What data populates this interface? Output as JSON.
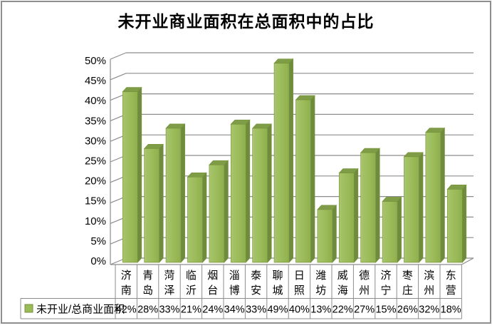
{
  "title": "未开业商业面积在总面积中的占比",
  "legend": {
    "series_label": "未开业/总商业面积"
  },
  "chart_data": {
    "type": "bar",
    "style": "3d-column",
    "title": "未开业商业面积在总面积中的占比",
    "categories": [
      "济南",
      "青岛",
      "菏泽",
      "临沂",
      "烟台",
      "淄博",
      "泰安",
      "聊城",
      "日照",
      "潍坊",
      "威海",
      "德州",
      "济宁",
      "枣庄",
      "滨州",
      "东营"
    ],
    "series": [
      {
        "name": "未开业/总商业面积",
        "values": [
          42,
          28,
          33,
          21,
          24,
          34,
          33,
          49,
          40,
          13,
          22,
          27,
          15,
          26,
          32,
          18
        ]
      }
    ],
    "value_labels": [
      "42%",
      "28%",
      "33%",
      "21%",
      "24%",
      "34%",
      "33%",
      "49%",
      "40%",
      "13%",
      "22%",
      "27%",
      "15%",
      "26%",
      "32%",
      "18%"
    ],
    "xlabel": "",
    "ylabel": "",
    "ylim": [
      0,
      50
    ],
    "y_tick_step": 5,
    "y_ticks": [
      "0%",
      "5%",
      "10%",
      "15%",
      "20%",
      "25%",
      "30%",
      "35%",
      "40%",
      "45%",
      "50%"
    ],
    "grid": true,
    "legend_position": "bottom-data-table",
    "colors": {
      "bar_front": "#9BBB59",
      "bar_top": "#7E9D46",
      "bar_side": "#6F8C3E",
      "bar_edge": "#77933C",
      "legend_key": "#9BBB59",
      "gridline": "#8C8C8C",
      "table_border": "#8C8C8C",
      "frame": "#8E8E8E",
      "text": "#000000"
    }
  }
}
